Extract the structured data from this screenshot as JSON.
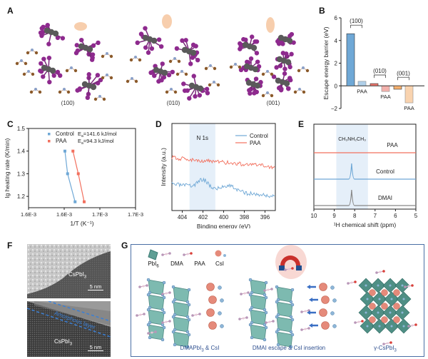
{
  "panels": {
    "A": {
      "label": "A",
      "captions": [
        "(100)",
        "(010)",
        "(001)"
      ]
    },
    "B": {
      "label": "B"
    },
    "C": {
      "label": "C"
    },
    "D": {
      "label": "D"
    },
    "E": {
      "label": "E"
    },
    "F": {
      "label": "F",
      "top": {
        "material": "CsPbI",
        "subscript": "3",
        "scale_bar": "5 nm"
      },
      "bottom": {
        "material": "CsPbI",
        "subscript": "3",
        "scale_bar": "5 nm",
        "annotation": "Amorphous layer"
      }
    },
    "G": {
      "label": "G",
      "legend": [
        {
          "name": "PbI",
          "sub": "6"
        },
        {
          "name": "DMA",
          "sub": ""
        },
        {
          "name": "PAA",
          "sub": ""
        },
        {
          "name": "CsI",
          "sub": ""
        }
      ],
      "stages": [
        {
          "caption_main": "DMAPbI",
          "caption_sub": "3",
          "caption_rest": " & CsI"
        },
        {
          "caption_main": "DMAI escape & CsI insertion",
          "caption_sub": "",
          "caption_rest": ""
        },
        {
          "caption_main": "γ-CsPbI",
          "caption_sub": "3",
          "caption_rest": ""
        }
      ]
    }
  },
  "chart_data": [
    {
      "panel": "B",
      "type": "bar",
      "title": "",
      "xlabel": "",
      "ylabel": "Escape energy barrier (eV)",
      "ylim": [
        -2,
        6
      ],
      "yticks": [
        -2,
        0,
        2,
        4,
        6
      ],
      "groups": [
        {
          "facet": "(100)",
          "control": 4.6,
          "paa": 0.4,
          "paa_label": "PAA",
          "color": "#6fa8d6"
        },
        {
          "facet": "(010)",
          "control": 0.2,
          "paa": -0.5,
          "paa_label": "PAA",
          "color": "#e8736a"
        },
        {
          "facet": "(001)",
          "control": -0.3,
          "paa": -1.5,
          "paa_label": "PAA",
          "color": "#f5b06e"
        }
      ]
    },
    {
      "panel": "C",
      "type": "scatter",
      "xlabel": "1/T (K⁻¹)",
      "ylabel": "lg heating rate (K/min)",
      "xlim": [
        0.00155,
        0.00175
      ],
      "ylim": [
        1.15,
        1.5
      ],
      "xtick_labels": [
        "1.6E-3",
        "1.6E-3",
        "1.7E-3",
        "1.7E-3"
      ],
      "yticks": [
        1.2,
        1.3,
        1.4,
        1.5
      ],
      "series": [
        {
          "name": "Control",
          "color": "#6fa8d6",
          "ea_label": "E",
          "ea_sub": "a",
          "ea_value": "=141.6 kJ/mol",
          "x": [
            0.001618,
            0.001623,
            0.001637
          ],
          "y": [
            1.4,
            1.3,
            1.176
          ]
        },
        {
          "name": "PAA",
          "color": "#f2705e",
          "ea_label": "E",
          "ea_sub": "a",
          "ea_value": "=94.3 kJ/mol",
          "x": [
            0.001633,
            0.001643,
            0.001654
          ],
          "y": [
            1.4,
            1.3,
            1.176
          ]
        }
      ]
    },
    {
      "panel": "D",
      "type": "line",
      "xlabel": "Binding energy (eV)",
      "ylabel": "Intensity (a.u.)",
      "xlim": [
        405,
        395
      ],
      "xticks": [
        404,
        402,
        400,
        398,
        396
      ],
      "highlight": {
        "from": 403.3,
        "to": 400.8,
        "label": "N 1s"
      },
      "series": [
        {
          "name": "Control",
          "color": "#6fa8d6"
        },
        {
          "name": "PAA",
          "color": "#f2705e"
        }
      ]
    },
    {
      "panel": "E",
      "type": "line",
      "xlabel": "¹H chemical shift (ppm)",
      "ylabel": "",
      "xlim": [
        10,
        5
      ],
      "xticks": [
        10,
        9,
        8,
        7,
        6,
        5
      ],
      "highlight": {
        "from": 8.9,
        "to": 7.35,
        "label": "CH₃NH₂CH₃"
      },
      "series": [
        {
          "name": "PAA",
          "color": "#f2705e",
          "peak": null
        },
        {
          "name": "Control",
          "color": "#6fa8d6",
          "peak": 8.15
        },
        {
          "name": "DMAI",
          "color": "#888888",
          "peak": 8.15
        }
      ]
    }
  ]
}
